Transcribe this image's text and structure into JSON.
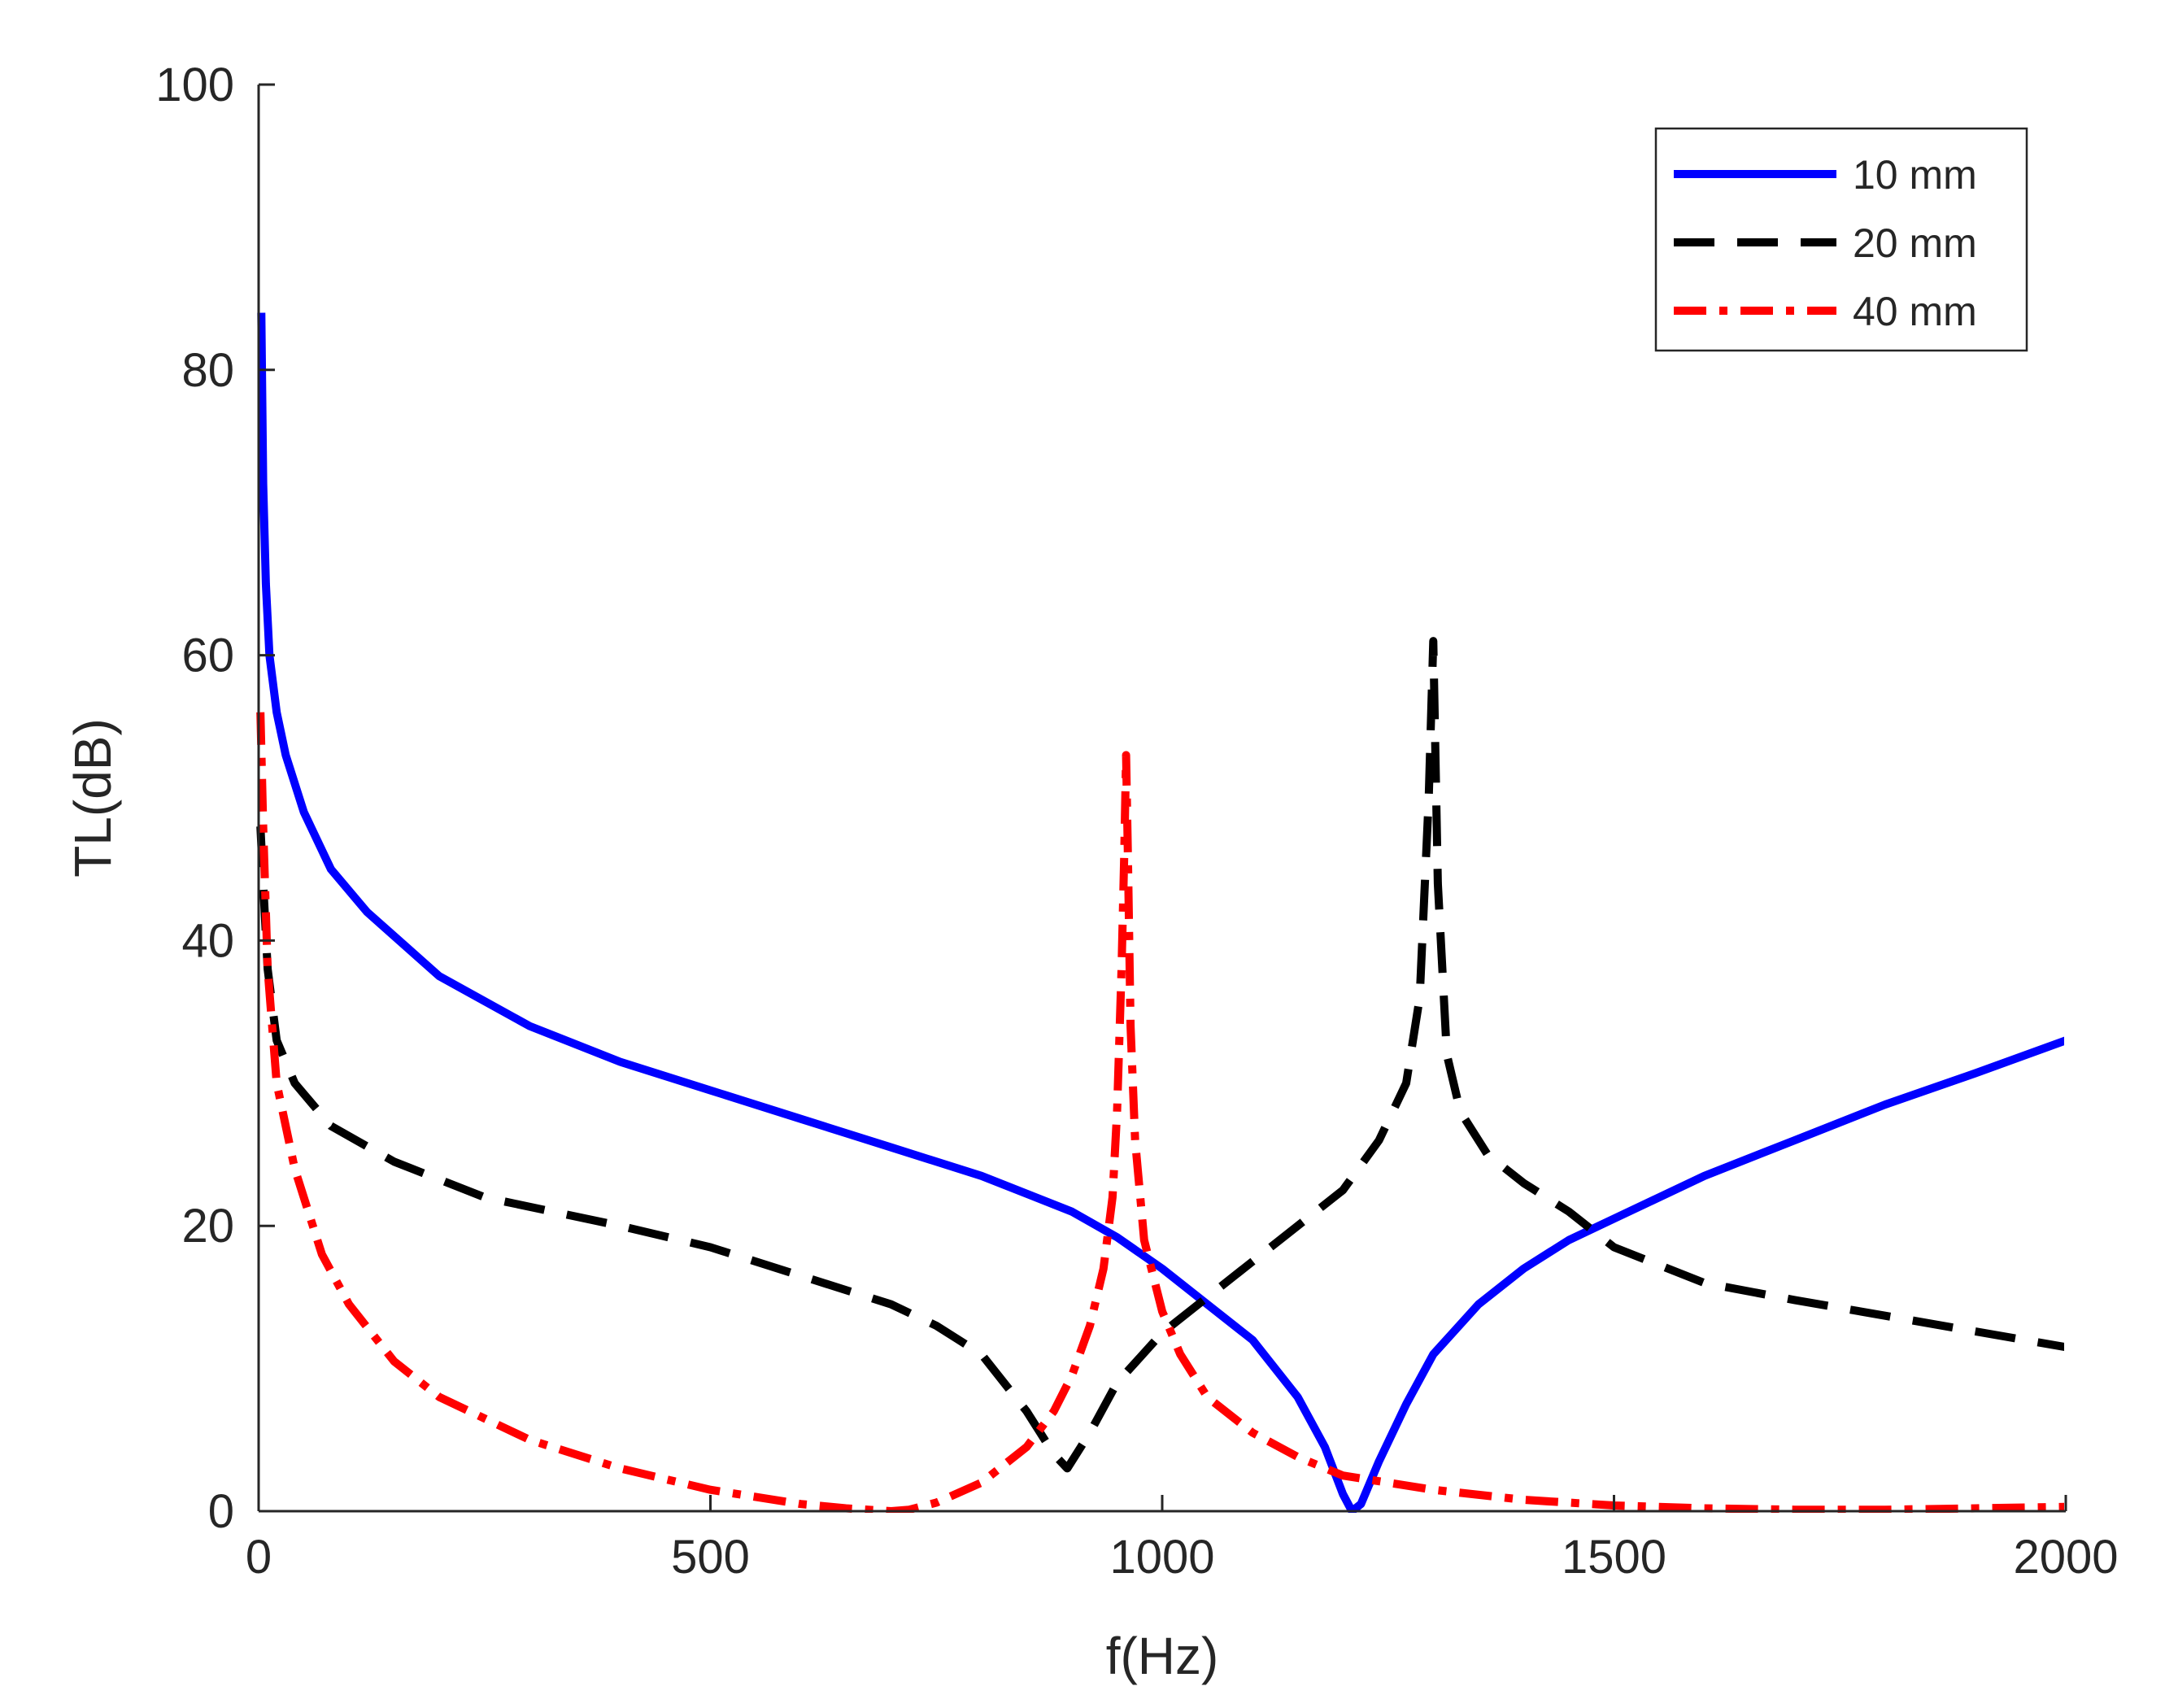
{
  "chart_data": {
    "type": "line",
    "title": "",
    "xlabel": "f(Hz)",
    "ylabel": "TL(dB)",
    "xlim": [
      0,
      2000
    ],
    "ylim": [
      0,
      100
    ],
    "xticks": [
      0,
      500,
      1000,
      1500,
      2000
    ],
    "yticks": [
      0,
      20,
      40,
      60,
      80,
      100
    ],
    "xtick_labels": [
      "0",
      "500",
      "1000",
      "1500",
      "2000"
    ],
    "ytick_labels": [
      "0",
      "20",
      "40",
      "60",
      "80",
      "100"
    ],
    "grid": false,
    "legend_position": "top-right",
    "series": [
      {
        "name": "10 mm",
        "color": "#0000ff",
        "style": "solid",
        "x": [
          3,
          5,
          8,
          12,
          20,
          30,
          50,
          80,
          120,
          200,
          300,
          400,
          500,
          600,
          700,
          800,
          900,
          950,
          1000,
          1050,
          1100,
          1150,
          1180,
          1200,
          1210,
          1220,
          1240,
          1270,
          1300,
          1350,
          1400,
          1450,
          1500,
          1600,
          1700,
          1800,
          1900,
          2000
        ],
        "y": [
          84,
          72,
          65,
          60,
          56,
          53,
          49,
          45,
          42,
          37.5,
          34,
          31.5,
          29.5,
          27.5,
          25.5,
          23.5,
          21,
          19.2,
          17,
          14.5,
          12,
          8,
          4.5,
          1.2,
          0,
          0.5,
          3.5,
          7.5,
          11,
          14.5,
          17,
          19,
          20.5,
          23.5,
          26,
          28.5,
          30.7,
          33
        ]
      },
      {
        "name": "20 mm",
        "color": "#000000",
        "style": "dashed",
        "x": [
          2,
          5,
          10,
          20,
          40,
          80,
          150,
          250,
          400,
          500,
          600,
          700,
          750,
          800,
          850,
          880,
          895,
          900,
          920,
          950,
          1000,
          1050,
          1100,
          1150,
          1200,
          1240,
          1270,
          1285,
          1295,
          1300,
          1305,
          1315,
          1330,
          1360,
          1400,
          1450,
          1500,
          1600,
          1700,
          1800,
          1900,
          2000
        ],
        "y": [
          48,
          44,
          38,
          33,
          30,
          27,
          24.5,
          22,
          20,
          18.5,
          16.5,
          14.5,
          13,
          11,
          7,
          4,
          3,
          3.5,
          5.5,
          9,
          12.5,
          15,
          17.5,
          20,
          22.5,
          26,
          30,
          36,
          50,
          61,
          44,
          32,
          28,
          25,
          23,
          21,
          18.5,
          16,
          14.8,
          13.7,
          12.6,
          11.5
        ]
      },
      {
        "name": "40 mm",
        "color": "#ff0000",
        "style": "dashdot",
        "x": [
          2,
          5,
          10,
          20,
          40,
          70,
          100,
          150,
          200,
          300,
          400,
          500,
          600,
          650,
          700,
          720,
          750,
          800,
          850,
          880,
          900,
          920,
          935,
          945,
          950,
          955,
          958,
          960,
          962,
          965,
          970,
          980,
          1000,
          1020,
          1050,
          1100,
          1150,
          1200,
          1300,
          1400,
          1500,
          1600,
          1700,
          1800,
          1900,
          2000
        ],
        "y": [
          56,
          48,
          38,
          30,
          24,
          18,
          14.5,
          10.5,
          8,
          5,
          3,
          1.5,
          0.5,
          0.2,
          0,
          0.1,
          0.6,
          2,
          4.5,
          7,
          9.5,
          13,
          17,
          22,
          28,
          38,
          46,
          53,
          46,
          34,
          26,
          19,
          14,
          11,
          8,
          5.5,
          3.8,
          2.5,
          1.5,
          0.8,
          0.4,
          0.2,
          0.1,
          0.1,
          0.2,
          0.3
        ]
      }
    ]
  }
}
